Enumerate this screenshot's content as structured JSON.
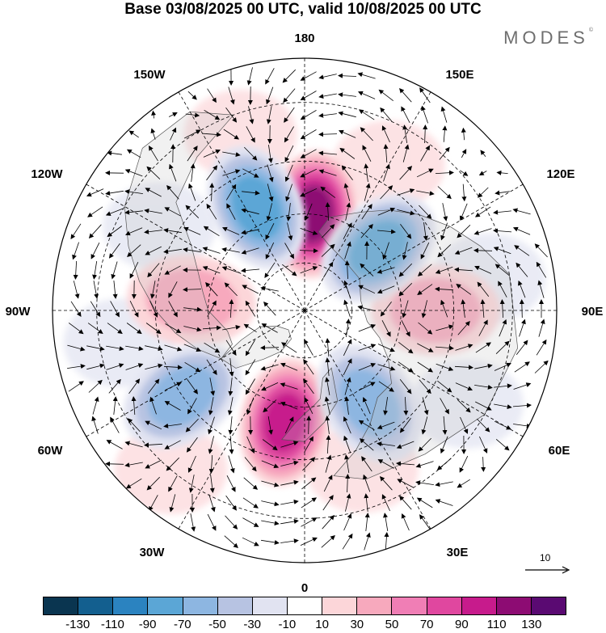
{
  "title": "Base 03/08/2025 00 UTC, valid 10/08/2025 00 UTC",
  "brand": "MODES",
  "brand_mark": "©",
  "map": {
    "projection": "north-polar-stereographic",
    "longitude_labels": {
      "top": "180",
      "top_left": "150W",
      "top_right": "150E",
      "upper_left": "120W",
      "upper_right": "120E",
      "left": "90W",
      "right": "90E",
      "lower_left": "60W",
      "lower_right": "60E",
      "bottom_left": "30W",
      "bottom_right": "30E",
      "bottom": "0"
    },
    "anomaly_centers": [
      {
        "name": "positive-anomaly-north-pacific",
        "lon": 175,
        "lat": 60,
        "value": 120
      },
      {
        "name": "positive-anomaly-north-atlantic",
        "lon": 350,
        "lat": 55,
        "value": 100
      },
      {
        "name": "positive-anomaly-central-siberia",
        "lon": 90,
        "lat": 50,
        "value": 50
      },
      {
        "name": "positive-anomaly-north-america",
        "lon": 265,
        "lat": 55,
        "value": 45
      },
      {
        "name": "negative-anomaly-bering",
        "lon": 205,
        "lat": 55,
        "value": -80
      },
      {
        "name": "negative-anomaly-east-siberia",
        "lon": 130,
        "lat": 60,
        "value": -80
      },
      {
        "name": "negative-anomaly-scandinavia-russia",
        "lon": 35,
        "lat": 55,
        "value": -70
      },
      {
        "name": "negative-anomaly-labrador",
        "lon": 305,
        "lat": 45,
        "value": -60
      }
    ]
  },
  "vector_reference": {
    "value": "10"
  },
  "colorbar": {
    "colors": [
      "#0a3550",
      "#135f8f",
      "#2b83c0",
      "#5ba6d6",
      "#8db6e1",
      "#b7c3e2",
      "#e1e3f1",
      "#ffffff",
      "#fcd6d9",
      "#f7a9bd",
      "#f07eb5",
      "#e0479f",
      "#c71b8c",
      "#8d0c73",
      "#5a0a72"
    ],
    "labels": [
      "-130",
      "-110",
      "-90",
      "-70",
      "-50",
      "-30",
      "-10",
      "10",
      "30",
      "50",
      "70",
      "90",
      "110",
      "130"
    ]
  }
}
